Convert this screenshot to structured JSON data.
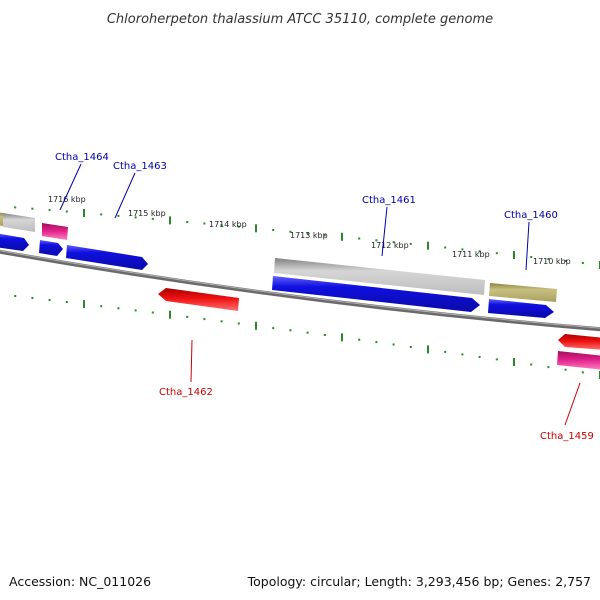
{
  "header": {
    "title": "Chloroherpeton thalassium ATCC 35110, complete genome"
  },
  "footer": {
    "accession": "Accession: NC_011026",
    "topology": "Topology: circular; Length: 3,293,456 bp; Genes: 2,757"
  },
  "colors": {
    "backbone": "#7a7a7a",
    "tick": "#2a8a2a",
    "gene_blue": "#1010e0",
    "gene_gray": "#b8b8b8",
    "gene_olive": "#b0a868",
    "gene_red": "#ee1111",
    "gene_pink": "#e0208a",
    "label_blue": "#0000aa",
    "label_red": "#cc0000"
  },
  "kbp_labels": [
    "1716 kbp",
    "1715 kbp",
    "1714 kbp",
    "1713 kbp",
    "1712 kbp",
    "1711 kbp",
    "1710 kbp"
  ],
  "gene_labels": {
    "ctha_1464": "Ctha_1464",
    "ctha_1463": "Ctha_1463",
    "ctha_1461": "Ctha_1461",
    "ctha_1460": "Ctha_1460",
    "ctha_1462": "Ctha_1462",
    "ctha_1459": "Ctha_1459"
  }
}
